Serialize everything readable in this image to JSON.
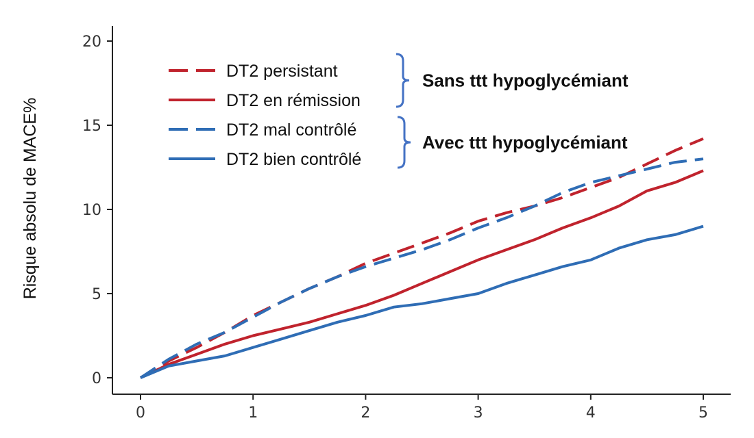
{
  "chart_data": {
    "type": "line",
    "title": "",
    "xlabel": "",
    "ylabel": "Risque absolu de MACE%",
    "xlim": [
      0,
      5
    ],
    "ylim": [
      0,
      20
    ],
    "x_ticks": [
      0,
      1,
      2,
      3,
      4,
      5
    ],
    "y_ticks": [
      0,
      5,
      10,
      15,
      20
    ],
    "grid": false,
    "legend_position": "top-left",
    "series": [
      {
        "name": "DT2 persistant",
        "color": "#c0232d",
        "dash": "dashed",
        "x": [
          0,
          0.25,
          0.5,
          0.75,
          1.0,
          1.25,
          1.5,
          1.75,
          2.0,
          2.25,
          2.5,
          2.75,
          3.0,
          3.25,
          3.5,
          3.75,
          4.0,
          4.25,
          4.5,
          4.75,
          5.0
        ],
        "y": [
          0,
          1.0,
          1.8,
          2.7,
          3.7,
          4.5,
          5.3,
          6.0,
          6.8,
          7.4,
          8.0,
          8.6,
          9.3,
          9.8,
          10.2,
          10.7,
          11.3,
          11.9,
          12.7,
          13.5,
          14.2
        ]
      },
      {
        "name": "DT2 en rémission",
        "color": "#c0232d",
        "dash": "solid",
        "x": [
          0,
          0.25,
          0.5,
          0.75,
          1.0,
          1.25,
          1.5,
          1.75,
          2.0,
          2.25,
          2.5,
          2.75,
          3.0,
          3.25,
          3.5,
          3.75,
          4.0,
          4.25,
          4.5,
          4.75,
          5.0
        ],
        "y": [
          0,
          0.8,
          1.4,
          2.0,
          2.5,
          2.9,
          3.3,
          3.8,
          4.3,
          4.9,
          5.6,
          6.3,
          7.0,
          7.6,
          8.2,
          8.9,
          9.5,
          10.2,
          11.1,
          11.6,
          12.3
        ]
      },
      {
        "name": "DT2 mal contrôlé",
        "color": "#2f6db5",
        "dash": "dashed",
        "x": [
          0,
          0.25,
          0.5,
          0.75,
          1.0,
          1.25,
          1.5,
          1.75,
          2.0,
          2.25,
          2.5,
          2.75,
          3.0,
          3.25,
          3.5,
          3.75,
          4.0,
          4.25,
          4.5,
          4.75,
          5.0
        ],
        "y": [
          0,
          1.1,
          2.0,
          2.7,
          3.6,
          4.5,
          5.3,
          6.0,
          6.6,
          7.1,
          7.6,
          8.2,
          8.9,
          9.5,
          10.2,
          11.0,
          11.6,
          12.0,
          12.4,
          12.8,
          13.0
        ]
      },
      {
        "name": "DT2 bien contrôlé",
        "color": "#2f6db5",
        "dash": "solid",
        "x": [
          0,
          0.25,
          0.5,
          0.75,
          1.0,
          1.25,
          1.5,
          1.75,
          2.0,
          2.25,
          2.5,
          2.75,
          3.0,
          3.25,
          3.5,
          3.75,
          4.0,
          4.25,
          4.5,
          4.75,
          5.0
        ],
        "y": [
          0,
          0.7,
          1.0,
          1.3,
          1.8,
          2.3,
          2.8,
          3.3,
          3.7,
          4.2,
          4.4,
          4.7,
          5.0,
          5.6,
          6.1,
          6.6,
          7.0,
          7.7,
          8.2,
          8.5,
          9.0
        ]
      }
    ],
    "legend_groups": [
      {
        "label": "Sans ttt hypoglycémiant",
        "series": [
          "DT2 persistant",
          "DT2 en rémission"
        ],
        "bracket_color": "#4472c4"
      },
      {
        "label": "Avec  ttt hypoglycémiant",
        "series": [
          "DT2 mal contrôlé",
          "DT2 bien contrôlé"
        ],
        "bracket_color": "#4472c4"
      }
    ]
  }
}
